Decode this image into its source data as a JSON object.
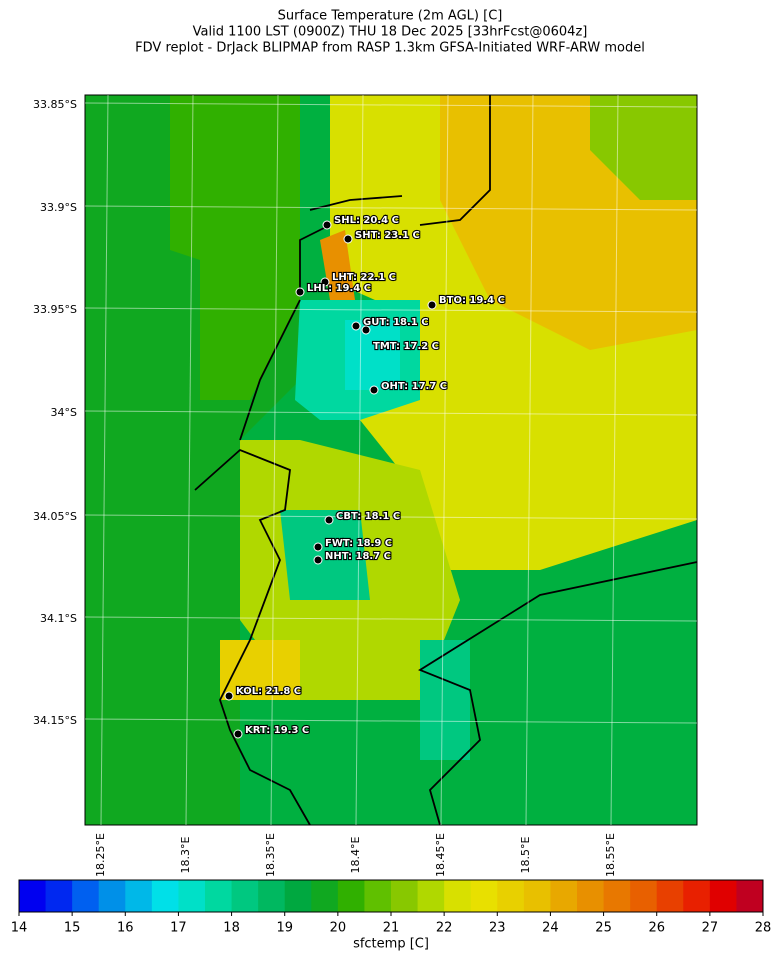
{
  "title": [
    "Surface Temperature (2m AGL) [C]",
    "Valid 1100 LST (0900Z) THU 18 Dec 2025 [33hrFcst@0604z]",
    "FDV replot - DrJack BLIPMAP from RASP 1.3km GFSA-Initiated WRF-ARW model"
  ],
  "lat_labels": [
    "33.85°S",
    "33.9°S",
    "33.95°S",
    "34°S",
    "34.05°S",
    "34.1°S",
    "34.15°S"
  ],
  "lon_labels": [
    "18.25°E",
    "18.3°E",
    "18.35°E",
    "18.4°E",
    "18.45°E",
    "18.5°E",
    "18.55°E"
  ],
  "stations": [
    "SHL: 20.4 C",
    "SHT: 23.1 C",
    "LHT: 22.1 C",
    "LHL: 19.4 C",
    "BTO: 19.4 C",
    "GUT: 18.1 C",
    "TMT: 17.2 C",
    "OHT: 17.7 C",
    "CBT: 18.1 C",
    "FWT: 18.9 C",
    "NHT: 18.7 C",
    "KOL: 21.8 C",
    "KRT: 19.3 C"
  ],
  "colorbar": {
    "lim": [
      14,
      28
    ],
    "ticks": [
      14,
      15,
      16,
      17,
      18,
      19,
      20,
      21,
      22,
      23,
      24,
      25,
      26,
      27,
      28
    ],
    "label": "sfctemp [C]",
    "colors": [
      "#0000f0",
      "#0028f0",
      "#0060f0",
      "#0090e8",
      "#00b8e8",
      "#00e0e8",
      "#00e0c8",
      "#00d8a0",
      "#00c880",
      "#00b860",
      "#00a840",
      "#10a820",
      "#30b000",
      "#60c000",
      "#88c800",
      "#b0d800",
      "#d8e000",
      "#e8e000",
      "#e8d000",
      "#e8c000",
      "#e8a800",
      "#e89000",
      "#e87800",
      "#e86000",
      "#e84000",
      "#e82000",
      "#e00000",
      "#c00020"
    ]
  }
}
